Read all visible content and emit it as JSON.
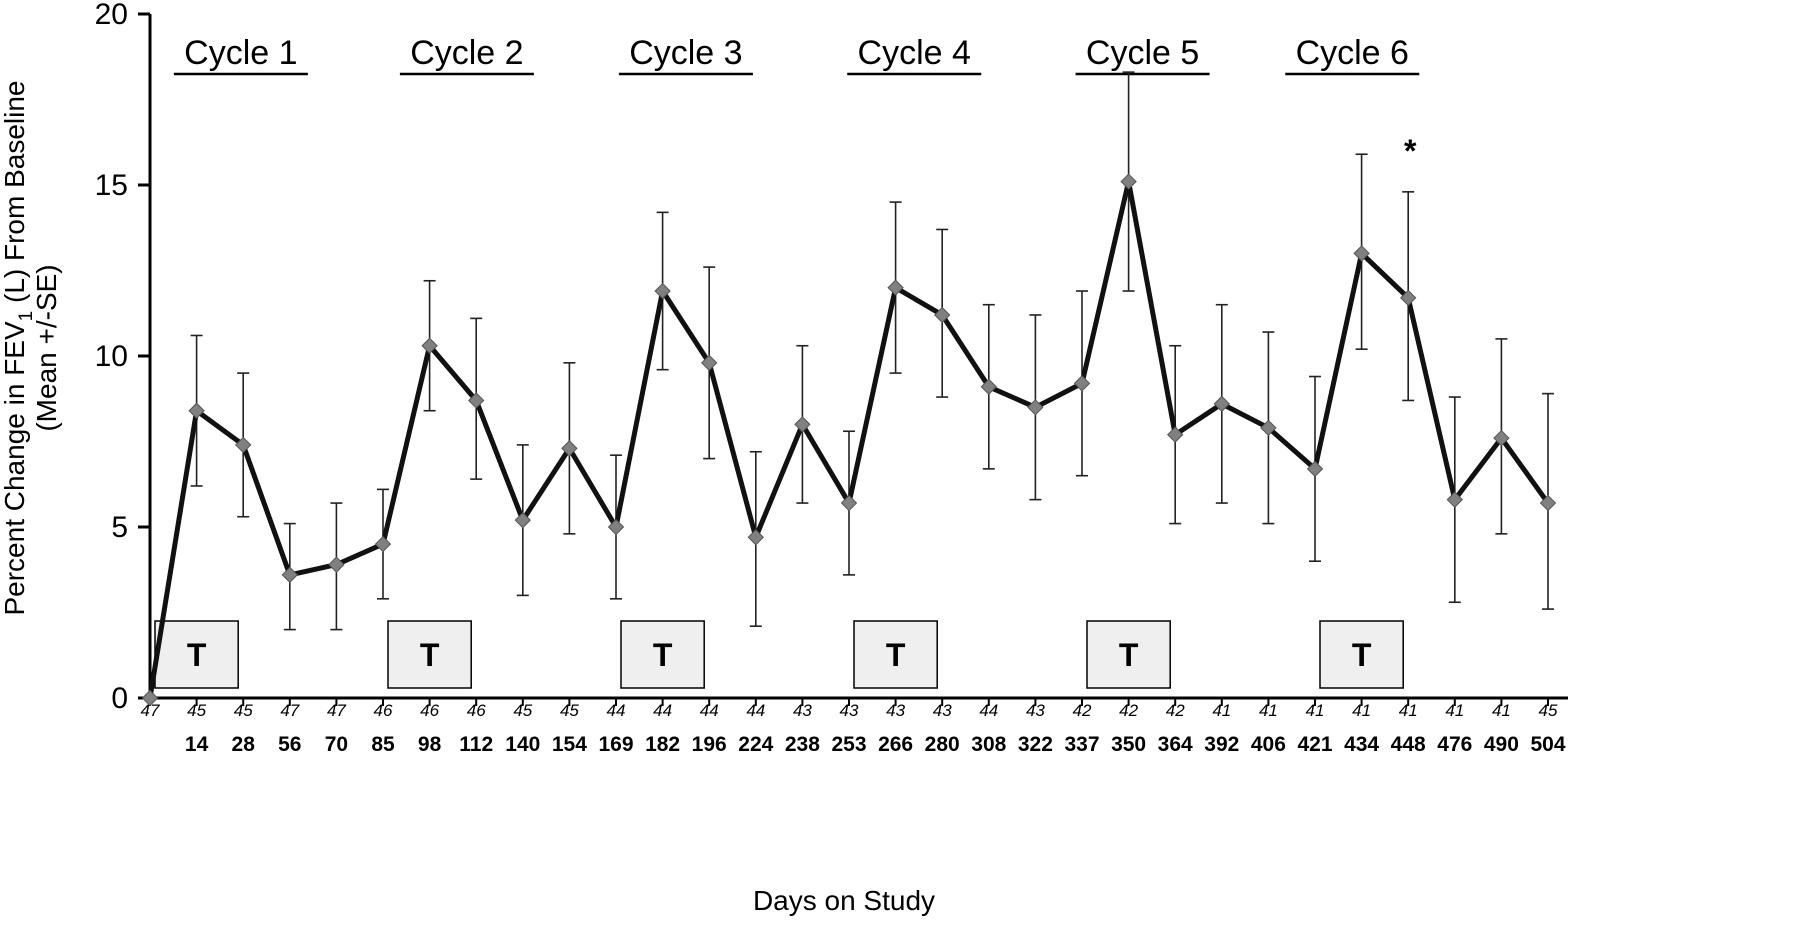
{
  "chart_data": {
    "type": "line",
    "xlabel": "Days on Study",
    "ylabel_line1": "Percent Change in FEV",
    "ylabel_sub": "1",
    "ylabel_line1_rest": " (L) From Baseline",
    "ylabel_line2": "(Mean +/-SE)",
    "ylim": [
      0,
      20
    ],
    "yticks": [
      "0",
      "5",
      "10",
      "15",
      "20"
    ],
    "categories": [
      "",
      "14",
      "28",
      "56",
      "70",
      "85",
      "98",
      "112",
      "140",
      "154",
      "169",
      "182",
      "196",
      "224",
      "238",
      "253",
      "266",
      "280",
      "308",
      "322",
      "337",
      "350",
      "364",
      "392",
      "406",
      "421",
      "434",
      "448",
      "476",
      "490",
      "504"
    ],
    "n_labels": [
      "47",
      "45",
      "45",
      "47",
      "47",
      "46",
      "46",
      "46",
      "45",
      "45",
      "44",
      "44",
      "44",
      "44",
      "43",
      "43",
      "43",
      "43",
      "44",
      "43",
      "42",
      "42",
      "42",
      "41",
      "41",
      "41",
      "41",
      "41",
      "41",
      "41",
      "45"
    ],
    "values": [
      0,
      8.4,
      7.4,
      3.6,
      3.9,
      4.5,
      10.3,
      8.7,
      5.2,
      7.3,
      5.0,
      11.9,
      9.8,
      4.7,
      8.0,
      5.7,
      12.0,
      11.2,
      9.1,
      8.5,
      9.2,
      15.1,
      7.7,
      8.6,
      7.9,
      6.7,
      13.0,
      11.7,
      5.8,
      7.6,
      5.7
    ],
    "error_low": [
      0,
      6.2,
      5.3,
      2.0,
      2.0,
      2.9,
      8.4,
      6.4,
      3.0,
      4.8,
      2.9,
      9.6,
      7.0,
      2.1,
      5.7,
      3.6,
      9.5,
      8.8,
      6.7,
      5.8,
      6.5,
      11.9,
      5.1,
      5.7,
      5.1,
      4.0,
      10.2,
      8.7,
      2.8,
      4.8,
      2.6
    ],
    "error_high": [
      0,
      10.6,
      9.5,
      5.1,
      5.7,
      6.1,
      12.2,
      11.1,
      7.4,
      9.8,
      7.1,
      14.2,
      12.6,
      7.2,
      10.3,
      7.8,
      14.5,
      13.7,
      11.5,
      11.2,
      11.9,
      18.3,
      10.3,
      11.5,
      10.7,
      9.4,
      15.9,
      14.8,
      8.8,
      10.5,
      8.9
    ],
    "cycles": [
      "Cycle 1",
      "Cycle 2",
      "Cycle 3",
      "Cycle 4",
      "Cycle 5",
      "Cycle 6"
    ],
    "treatment_label": "T",
    "annotation": "*",
    "annotation_index": 27,
    "line_color": "#111111",
    "marker_color": "#808080",
    "box_fill": "#efefef"
  }
}
